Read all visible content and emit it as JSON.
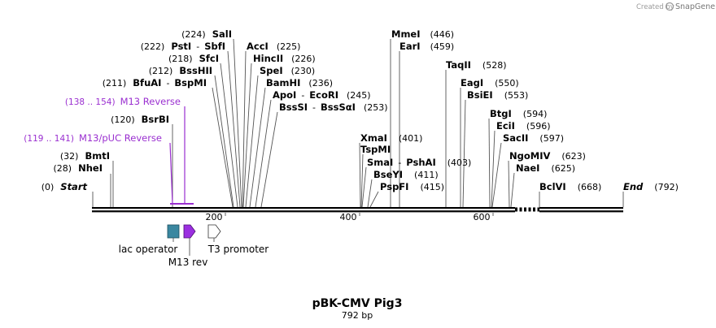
{
  "header": {
    "created_by": "Created by",
    "brand": "SnapGene"
  },
  "map": {
    "title": "pBK-CMV Pig3",
    "length_label": "792 bp",
    "total_bp": 792,
    "ticks": [
      {
        "bp": 200,
        "label": "200"
      },
      {
        "bp": 400,
        "label": "400"
      },
      {
        "bp": 600,
        "label": "600"
      }
    ],
    "ends": [
      {
        "name": "Start",
        "pos": "(0)"
      },
      {
        "name": "End",
        "pos": "(792)"
      }
    ],
    "sites": [
      {
        "name": "NheI",
        "pos": "(28)"
      },
      {
        "name": "BmtI",
        "pos": "(32)"
      },
      {
        "name": "BsrBI",
        "pos": "(120)"
      },
      {
        "name": "BfuAI",
        "sep": "-",
        "name2": "BspMI",
        "pos": "(211)"
      },
      {
        "name": "BssHII",
        "pos": "(212)"
      },
      {
        "name": "SfcI",
        "pos": "(218)"
      },
      {
        "name": "PstI",
        "sep": "-",
        "name2": "SbfI",
        "pos": "(222)"
      },
      {
        "name": "SalI",
        "pos": "(224)"
      },
      {
        "name": "AccI",
        "pos": "(225)"
      },
      {
        "name": "HincII",
        "pos": "(226)"
      },
      {
        "name": "SpeI",
        "pos": "(230)"
      },
      {
        "name": "BamHI",
        "pos": "(236)"
      },
      {
        "name": "ApoI",
        "sep": "-",
        "name2": "EcoRI",
        "pos": "(245)"
      },
      {
        "name": "BssSI",
        "sep": "-",
        "name2": "BssSαI",
        "pos": "(253)"
      },
      {
        "name": "XmaI",
        "pos": "(401)"
      },
      {
        "name": "TspMI",
        "pos": ""
      },
      {
        "name": "SmaI",
        "sep": "-",
        "name2": "PshAI",
        "pos": "(403)"
      },
      {
        "name": "BseYI",
        "pos": "(411)"
      },
      {
        "name": "PspFI",
        "pos": "(415)"
      },
      {
        "name": "MmeI",
        "pos": "(446)"
      },
      {
        "name": "EarI",
        "pos": "(459)"
      },
      {
        "name": "TaqII",
        "pos": "(528)"
      },
      {
        "name": "EagI",
        "pos": "(550)"
      },
      {
        "name": "BsiEI",
        "pos": "(553)"
      },
      {
        "name": "BtgI",
        "pos": "(594)"
      },
      {
        "name": "EciI",
        "pos": "(596)"
      },
      {
        "name": "SacII",
        "pos": "(597)"
      },
      {
        "name": "NgoMIV",
        "pos": "(623)"
      },
      {
        "name": "NaeI",
        "pos": "(625)"
      },
      {
        "name": "BclVI",
        "pos": "(668)"
      }
    ],
    "primers": [
      {
        "name": "M13 Reverse",
        "range": "(138 .. 154)"
      },
      {
        "name": "M13/pUC Reverse",
        "range": "(119 .. 141)"
      }
    ],
    "features": [
      {
        "name": "lac operator",
        "color": "#3a87a0"
      },
      {
        "name": "M13 rev",
        "color": "#9b2fe0"
      },
      {
        "name": "T3 promoter",
        "color": "#ffffff"
      }
    ],
    "colors": {
      "primer": "#9a2fd0",
      "backbone": "#000000",
      "connector": "#555555"
    }
  }
}
